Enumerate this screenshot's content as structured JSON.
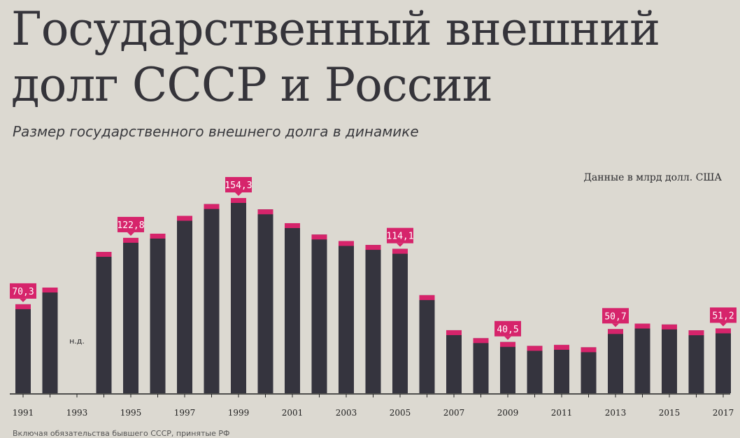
{
  "header": {
    "title_line1": "Государственный внешний",
    "title_line2": "долг СССР и России",
    "subtitle": "Размер государственного внешнего долга в динамике",
    "unit_note": "Данные в млрд долл. США"
  },
  "footnote": "Включая обязательства бывшего СССР, принятые РФ",
  "colors": {
    "bar": "#35343e",
    "cap": "#d6246b",
    "background": "#dcd9d1",
    "axis": "#222222"
  },
  "chart_data": {
    "type": "bar",
    "categories": [
      "1991",
      "1992",
      "1993",
      "1994",
      "1995",
      "1996",
      "1997",
      "1998",
      "1999",
      "2000",
      "2001",
      "2002",
      "2003",
      "2004",
      "2005",
      "2006",
      "2007",
      "2008",
      "2009",
      "2010",
      "2011",
      "2012",
      "2013",
      "2014",
      "2015",
      "2016",
      "2017"
    ],
    "values": [
      70.3,
      83.5,
      null,
      111.7,
      122.8,
      126.1,
      140.2,
      149.5,
      154.3,
      145.3,
      134.4,
      125.4,
      120.3,
      117.2,
      114.1,
      77.5,
      49.8,
      43.5,
      40.5,
      37.4,
      38.2,
      36.3,
      50.7,
      55.0,
      54.3,
      49.7,
      51.2
    ],
    "tick_labels": [
      "1991",
      "1993",
      "1995",
      "1997",
      "1999",
      "2001",
      "2003",
      "2005",
      "2007",
      "2009",
      "2011",
      "2013",
      "2015",
      "2017"
    ],
    "highlighted": [
      {
        "year": "1991",
        "label": "70,3"
      },
      {
        "year": "1995",
        "label": "122,8"
      },
      {
        "year": "1999",
        "label": "154,3"
      },
      {
        "year": "2005",
        "label": "114,1"
      },
      {
        "year": "2009",
        "label": "40,5"
      },
      {
        "year": "2013",
        "label": "50,7"
      },
      {
        "year": "2017",
        "label": "51,2"
      }
    ],
    "missing": [
      {
        "year": "1993",
        "label": "н.д."
      }
    ],
    "ylim": [
      0,
      160
    ],
    "grid": false,
    "legend": "none"
  }
}
